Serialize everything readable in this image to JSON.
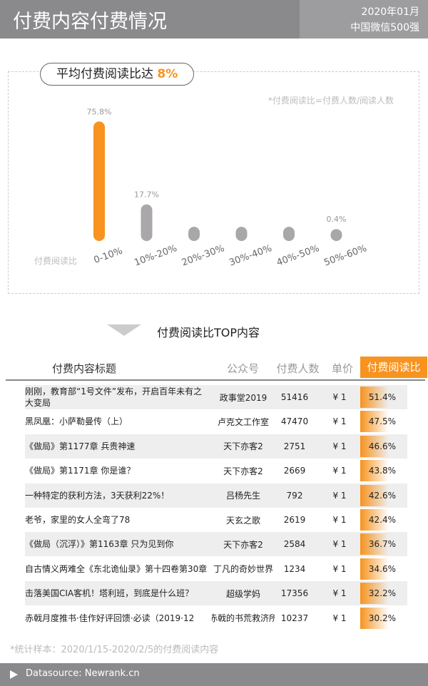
{
  "header": {
    "title": "付费内容付费情况",
    "date": "2020年01月",
    "scope": "中国微信500强"
  },
  "chart_data": {
    "type": "bar",
    "title": "平均付费阅读比达",
    "highlight": "8%",
    "note": "*付费阅读比=付费人数/阅读人数",
    "y_label": "付费阅读比",
    "categories": [
      "0-10%",
      "10%-20%",
      "20%-30%",
      "30%-40%",
      "40%-50%",
      "50%-60%"
    ],
    "values": [
      75.8,
      17.7,
      2,
      2,
      2,
      0.4
    ],
    "value_labels": [
      "75.8%",
      "17.7%",
      null,
      null,
      null,
      "0.4%"
    ],
    "colors": [
      "#f7931e",
      "#a9a7aa",
      "#a9a7aa",
      "#a9a7aa",
      "#a9a7aa",
      "#a9a7aa"
    ]
  },
  "table": {
    "title": "付费阅读比TOP内容",
    "columns": [
      "付费内容标题",
      "公众号",
      "付费人数",
      "单价",
      "付费阅读比"
    ],
    "rows": [
      [
        "刚刚，教育部“1号文件”发布，开启百年未有之大变局",
        "政事堂2019",
        "51416",
        "¥ 1",
        "51.4%"
      ],
      [
        "黑凤凰：小萨勒曼传（上）",
        "卢克文工作室",
        "47470",
        "¥ 1",
        "47.5%"
      ],
      [
        "《做局》第1177章 兵贵神速",
        "天下亦客2",
        "2751",
        "¥ 1",
        "46.6%"
      ],
      [
        "《做局》第1171章 你是谁？",
        "天下亦客2",
        "2669",
        "¥ 1",
        "43.8%"
      ],
      [
        "一种特定的获利方法，3天获利22%！",
        "吕杨先生",
        "792",
        "¥ 1",
        "42.6%"
      ],
      [
        "老爷，家里的女人全弯了78",
        "天玄之歌",
        "2619",
        "¥ 1",
        "42.4%"
      ],
      [
        "《做局（沉浮）》第1163章 只为见到你",
        "天下亦客2",
        "2584",
        "¥ 1",
        "36.7%"
      ],
      [
        "自古情义两难全《东北诡仙录》第十四卷第30章",
        "丁凡的奇妙世界",
        "1234",
        "¥ 1",
        "34.6%"
      ],
      [
        "击落美国CIA客机！塔利班，到底是什么班？",
        "超级学妈",
        "17356",
        "¥ 1",
        "32.2%"
      ],
      [
        "赤戟月度推书·佳作好评回馈·必读（2019·12",
        "赤戟的书荒救济所",
        "10237",
        "¥ 1",
        "30.2%"
      ]
    ]
  },
  "footer": {
    "note": "*统计样本：2020/1/15-2020/2/5的付费阅读内容",
    "source": "Datasource: Newrank.cn"
  }
}
